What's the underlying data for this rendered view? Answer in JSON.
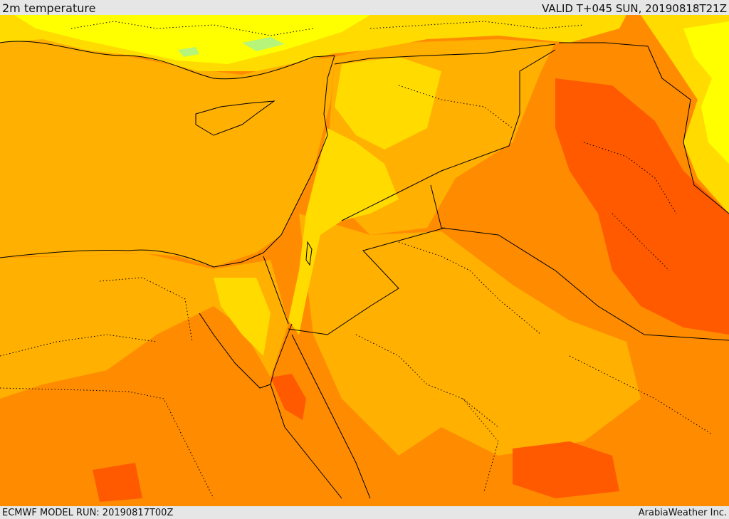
{
  "header": {
    "title": "2m temperature",
    "valid": "VALID T+045 SUN, 20190818T21Z"
  },
  "footer": {
    "model_run": "ECMWF MODEL RUN: 20190817T00Z",
    "credit": "ArabiaWeather Inc."
  },
  "map": {
    "colors": {
      "light_green": "#b6f47a",
      "yellow": "#ffff00",
      "gold": "#ffdb00",
      "amber": "#ffb000",
      "orange": "#ff8c00",
      "dark_orange": "#ff5a00",
      "border": "#000000"
    }
  }
}
